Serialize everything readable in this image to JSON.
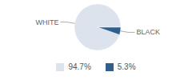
{
  "chart_data": {
    "type": "pie",
    "categories": [
      "WHITE",
      "BLACK"
    ],
    "values": [
      94.7,
      5.3
    ],
    "value_labels": [
      "94.7%",
      "5.3%"
    ],
    "colors": [
      "#dce3ec",
      "#2f5f8a"
    ],
    "legend": "bottom"
  }
}
